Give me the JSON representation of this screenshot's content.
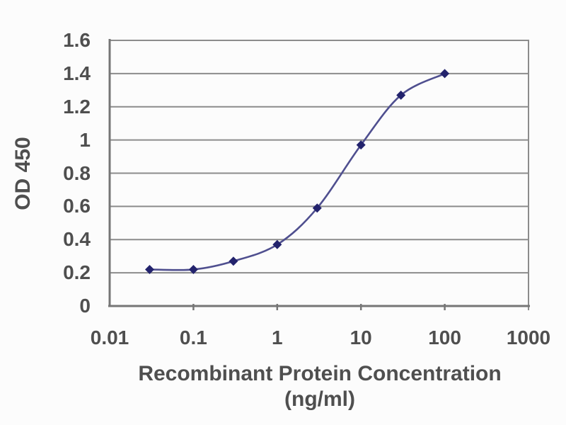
{
  "chart_data": {
    "type": "line",
    "title": "",
    "xlabel": "Recombinant Protein Concentration (ng/ml)",
    "ylabel": "OD 450",
    "x_scale": "log",
    "xlim": [
      0.01,
      1000
    ],
    "ylim": [
      0,
      1.6
    ],
    "x": [
      0.03,
      0.1,
      0.3,
      1,
      3,
      10,
      30,
      100
    ],
    "y": [
      0.22,
      0.22,
      0.27,
      0.37,
      0.59,
      0.97,
      1.27,
      1.4
    ],
    "x_ticks": [
      0.01,
      0.1,
      1,
      10,
      100,
      1000
    ],
    "x_tick_labels": [
      "0.01",
      "0.1",
      "1",
      "10",
      "100",
      "1000"
    ],
    "y_ticks": [
      0,
      0.2,
      0.4,
      0.6,
      0.8,
      1,
      1.2,
      1.4,
      1.6
    ],
    "y_tick_labels": [
      "0",
      "0.2",
      "0.4",
      "0.6",
      "0.8",
      "1",
      "1.2",
      "1.4",
      "1.6"
    ],
    "grid": "horizontal",
    "legend": "none",
    "marker": "diamond",
    "colors": {
      "line": "#4f4f8f",
      "marker": "#23236d",
      "grid": "#8c8c8c",
      "axis": "#767676",
      "text": "#4f4f4f",
      "background": "#fcfcfc"
    }
  }
}
